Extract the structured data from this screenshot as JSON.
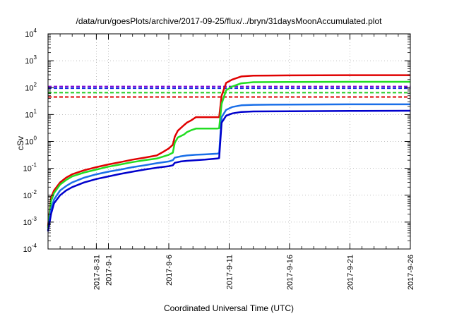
{
  "chart_data": {
    "type": "line",
    "title": "/data/run/goesPlots/archive/2017-09-25/flux/../bryn/31daysMoonAccumulated.plot",
    "xlabel": "Coordinated Universal Time (UTC)",
    "ylabel": "cSv",
    "yscale": "log",
    "ylim": [
      0.0001,
      10000
    ],
    "xlim": [
      "2017-08-27",
      "2017-09-26"
    ],
    "grid": true,
    "x_ticks": [
      {
        "date": "2017-08-31",
        "label": "2017-8-31"
      },
      {
        "date": "2017-09-01",
        "label": "2017-9-1"
      },
      {
        "date": "2017-09-06",
        "label": "2017-9-6"
      },
      {
        "date": "2017-09-11",
        "label": "2017-9-11"
      },
      {
        "date": "2017-09-16",
        "label": "2017-9-16"
      },
      {
        "date": "2017-09-21",
        "label": "2017-9-21"
      },
      {
        "date": "2017-09-26",
        "label": "2017-9-26"
      }
    ],
    "y_ticks": [
      {
        "value": 0.0001,
        "base": "10",
        "exp": "-4"
      },
      {
        "value": 0.001,
        "base": "10",
        "exp": "-3"
      },
      {
        "value": 0.01,
        "base": "10",
        "exp": "-2"
      },
      {
        "value": 0.1,
        "base": "10",
        "exp": "-1"
      },
      {
        "value": 1,
        "base": "10",
        "exp": "0"
      },
      {
        "value": 10,
        "base": "10",
        "exp": "1"
      },
      {
        "value": 100,
        "base": "10",
        "exp": "2"
      },
      {
        "value": 1000,
        "base": "10",
        "exp": "3"
      },
      {
        "value": 10000,
        "base": "10",
        "exp": "4"
      }
    ],
    "thresholds": [
      {
        "value": 110,
        "color": "#7a00d4"
      },
      {
        "value": 95,
        "color": "#1030e0"
      },
      {
        "value": 65,
        "color": "#22cc22"
      },
      {
        "value": 45,
        "color": "#dd0000"
      }
    ],
    "series": [
      {
        "color": "#e00000",
        "points": [
          [
            "2017-08-27T00:00",
            0.0007
          ],
          [
            "2017-08-27T06:00",
            0.008
          ],
          [
            "2017-08-27T12:00",
            0.015
          ],
          [
            "2017-08-28T00:00",
            0.03
          ],
          [
            "2017-08-28T12:00",
            0.045
          ],
          [
            "2017-08-29T00:00",
            0.06
          ],
          [
            "2017-08-30T00:00",
            0.085
          ],
          [
            "2017-08-31T00:00",
            0.11
          ],
          [
            "2017-09-01T00:00",
            0.14
          ],
          [
            "2017-09-02T00:00",
            0.17
          ],
          [
            "2017-09-03T00:00",
            0.21
          ],
          [
            "2017-09-04T00:00",
            0.25
          ],
          [
            "2017-09-05T00:00",
            0.3
          ],
          [
            "2017-09-05T12:00",
            0.4
          ],
          [
            "2017-09-06T00:00",
            0.55
          ],
          [
            "2017-09-06T08:00",
            0.75
          ],
          [
            "2017-09-06T12:00",
            1.5
          ],
          [
            "2017-09-06T18:00",
            2.5
          ],
          [
            "2017-09-07T06:00",
            4.0
          ],
          [
            "2017-09-07T12:00",
            5.0
          ],
          [
            "2017-09-07T20:00",
            6.0
          ],
          [
            "2017-09-08T06:00",
            8.0
          ],
          [
            "2017-09-09T00:00",
            8.0
          ],
          [
            "2017-09-10T00:00",
            8.0
          ],
          [
            "2017-09-10T04:00",
            8.0
          ],
          [
            "2017-09-10T09:00",
            50
          ],
          [
            "2017-09-10T18:00",
            150
          ],
          [
            "2017-09-11T06:00",
            200
          ],
          [
            "2017-09-12T00:00",
            260
          ],
          [
            "2017-09-13T00:00",
            280
          ],
          [
            "2017-09-16T00:00",
            285
          ],
          [
            "2017-09-21T00:00",
            290
          ],
          [
            "2017-09-26T00:00",
            290
          ]
        ]
      },
      {
        "color": "#22dd22",
        "points": [
          [
            "2017-08-27T00:00",
            0.0006
          ],
          [
            "2017-08-27T06:00",
            0.006
          ],
          [
            "2017-08-27T12:00",
            0.012
          ],
          [
            "2017-08-28T00:00",
            0.025
          ],
          [
            "2017-08-28T12:00",
            0.037
          ],
          [
            "2017-08-29T00:00",
            0.05
          ],
          [
            "2017-08-30T00:00",
            0.07
          ],
          [
            "2017-08-31T00:00",
            0.09
          ],
          [
            "2017-09-01T00:00",
            0.115
          ],
          [
            "2017-09-02T00:00",
            0.14
          ],
          [
            "2017-09-03T00:00",
            0.17
          ],
          [
            "2017-09-04T00:00",
            0.2
          ],
          [
            "2017-09-05T00:00",
            0.23
          ],
          [
            "2017-09-05T12:00",
            0.27
          ],
          [
            "2017-09-06T00:00",
            0.32
          ],
          [
            "2017-09-06T08:00",
            0.38
          ],
          [
            "2017-09-06T12:00",
            0.9
          ],
          [
            "2017-09-06T18:00",
            1.4
          ],
          [
            "2017-09-07T06:00",
            1.8
          ],
          [
            "2017-09-07T12:00",
            2.2
          ],
          [
            "2017-09-07T20:00",
            2.6
          ],
          [
            "2017-09-08T06:00",
            3.0
          ],
          [
            "2017-09-09T00:00",
            3.0
          ],
          [
            "2017-09-10T00:00",
            3.0
          ],
          [
            "2017-09-10T04:00",
            3.1
          ],
          [
            "2017-09-10T09:00",
            25
          ],
          [
            "2017-09-10T18:00",
            80
          ],
          [
            "2017-09-11T06:00",
            110
          ],
          [
            "2017-09-12T00:00",
            145
          ],
          [
            "2017-09-13T00:00",
            160
          ],
          [
            "2017-09-16T00:00",
            163
          ],
          [
            "2017-09-21T00:00",
            165
          ],
          [
            "2017-09-26T00:00",
            165
          ]
        ]
      },
      {
        "color": "#1a6fe8",
        "points": [
          [
            "2017-08-27T00:00",
            0.0005
          ],
          [
            "2017-08-27T06:00",
            0.003
          ],
          [
            "2017-08-27T12:00",
            0.007
          ],
          [
            "2017-08-28T00:00",
            0.015
          ],
          [
            "2017-08-28T12:00",
            0.022
          ],
          [
            "2017-08-29T00:00",
            0.03
          ],
          [
            "2017-08-30T00:00",
            0.045
          ],
          [
            "2017-08-31T00:00",
            0.06
          ],
          [
            "2017-09-01T00:00",
            0.075
          ],
          [
            "2017-09-02T00:00",
            0.09
          ],
          [
            "2017-09-03T00:00",
            0.11
          ],
          [
            "2017-09-04T00:00",
            0.13
          ],
          [
            "2017-09-05T00:00",
            0.155
          ],
          [
            "2017-09-06T00:00",
            0.18
          ],
          [
            "2017-09-06T08:00",
            0.2
          ],
          [
            "2017-09-06T12:00",
            0.25
          ],
          [
            "2017-09-07T00:00",
            0.28
          ],
          [
            "2017-09-07T12:00",
            0.3
          ],
          [
            "2017-09-08T06:00",
            0.32
          ],
          [
            "2017-09-09T00:00",
            0.33
          ],
          [
            "2017-09-10T00:00",
            0.35
          ],
          [
            "2017-09-10T04:00",
            0.36
          ],
          [
            "2017-09-10T09:00",
            8
          ],
          [
            "2017-09-10T18:00",
            15
          ],
          [
            "2017-09-11T06:00",
            19
          ],
          [
            "2017-09-12T00:00",
            22
          ],
          [
            "2017-09-13T00:00",
            23
          ],
          [
            "2017-09-16T00:00",
            23.5
          ],
          [
            "2017-09-21T00:00",
            24
          ],
          [
            "2017-09-26T00:00",
            24
          ]
        ]
      },
      {
        "color": "#0000cc",
        "points": [
          [
            "2017-08-27T00:00",
            0.00045
          ],
          [
            "2017-08-27T06:00",
            0.002
          ],
          [
            "2017-08-27T12:00",
            0.005
          ],
          [
            "2017-08-28T00:00",
            0.01
          ],
          [
            "2017-08-28T12:00",
            0.015
          ],
          [
            "2017-08-29T00:00",
            0.02
          ],
          [
            "2017-08-30T00:00",
            0.03
          ],
          [
            "2017-08-31T00:00",
            0.04
          ],
          [
            "2017-09-01T00:00",
            0.05
          ],
          [
            "2017-09-02T00:00",
            0.062
          ],
          [
            "2017-09-03T00:00",
            0.075
          ],
          [
            "2017-09-04T00:00",
            0.09
          ],
          [
            "2017-09-05T00:00",
            0.105
          ],
          [
            "2017-09-06T00:00",
            0.12
          ],
          [
            "2017-09-06T08:00",
            0.13
          ],
          [
            "2017-09-06T12:00",
            0.16
          ],
          [
            "2017-09-07T00:00",
            0.18
          ],
          [
            "2017-09-07T12:00",
            0.19
          ],
          [
            "2017-09-08T06:00",
            0.2
          ],
          [
            "2017-09-09T00:00",
            0.21
          ],
          [
            "2017-09-10T00:00",
            0.23
          ],
          [
            "2017-09-10T04:00",
            0.24
          ],
          [
            "2017-09-10T09:00",
            5
          ],
          [
            "2017-09-10T18:00",
            9
          ],
          [
            "2017-09-11T06:00",
            11
          ],
          [
            "2017-09-12T00:00",
            12.5
          ],
          [
            "2017-09-13T00:00",
            13
          ],
          [
            "2017-09-16T00:00",
            13.3
          ],
          [
            "2017-09-21T00:00",
            13.6
          ],
          [
            "2017-09-26T00:00",
            13.8
          ]
        ]
      }
    ]
  }
}
